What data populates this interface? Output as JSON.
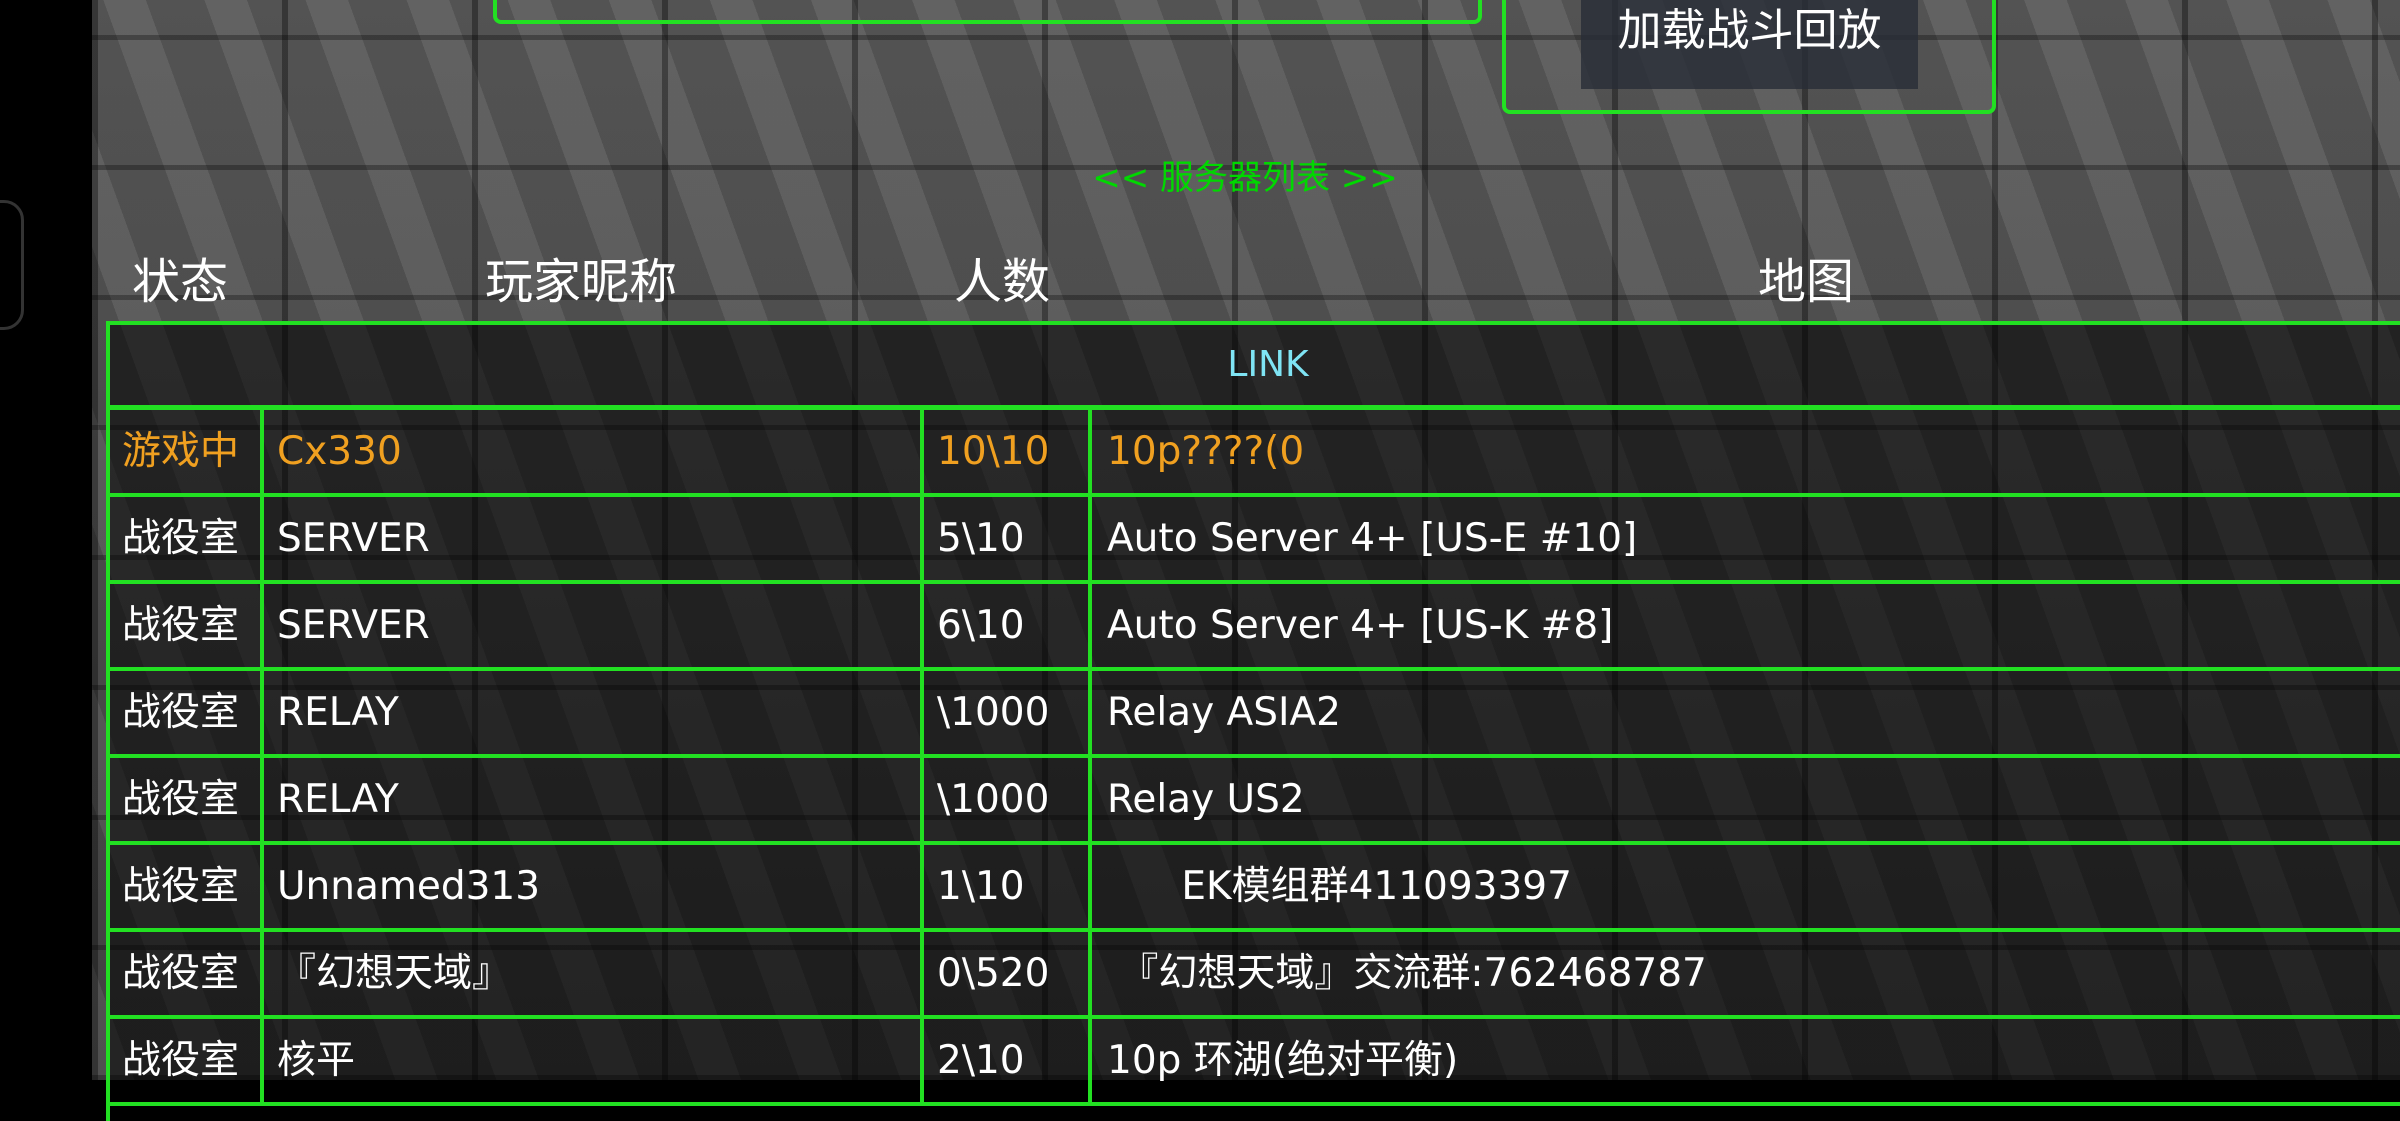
{
  "top": {
    "replay_button": "加载战斗回放",
    "section_title": "<< 服务器列表 >>"
  },
  "headers": {
    "status": "状态",
    "player": "玩家昵称",
    "count": "人数",
    "map": "地图"
  },
  "group": "LINK",
  "colors": {
    "accent_green": "#22e022",
    "playing_orange": "#f0a020",
    "group_cyan": "#7fe4f4"
  },
  "rows": [
    {
      "status": "游戏中",
      "player": "Cx330",
      "count": "10\\10",
      "map": "10p????(0",
      "playing": true
    },
    {
      "status": "战役室",
      "player": "SERVER",
      "count": "5\\10",
      "map": "Auto Server 4+ [US-E #10]"
    },
    {
      "status": "战役室",
      "player": "SERVER",
      "count": "6\\10",
      "map": "Auto Server 4+ [US-K #8]"
    },
    {
      "status": "战役室",
      "player": "RELAY",
      "count": "\\1000",
      "map": "Relay ASIA2"
    },
    {
      "status": "战役室",
      "player": "RELAY",
      "count": "\\1000",
      "map": "Relay US2"
    },
    {
      "status": "战役室",
      "player": "Unnamed313",
      "count": "1\\10",
      "map": "      EK模组群411093397"
    },
    {
      "status": "战役室",
      "player": "『幻想天域』",
      "count": "0\\520",
      "map": " 『幻想天域』交流群:762468787"
    },
    {
      "status": "战役室",
      "player": "核平",
      "count": "2\\10",
      "map": "10p 环湖(绝对平衡)"
    }
  ]
}
